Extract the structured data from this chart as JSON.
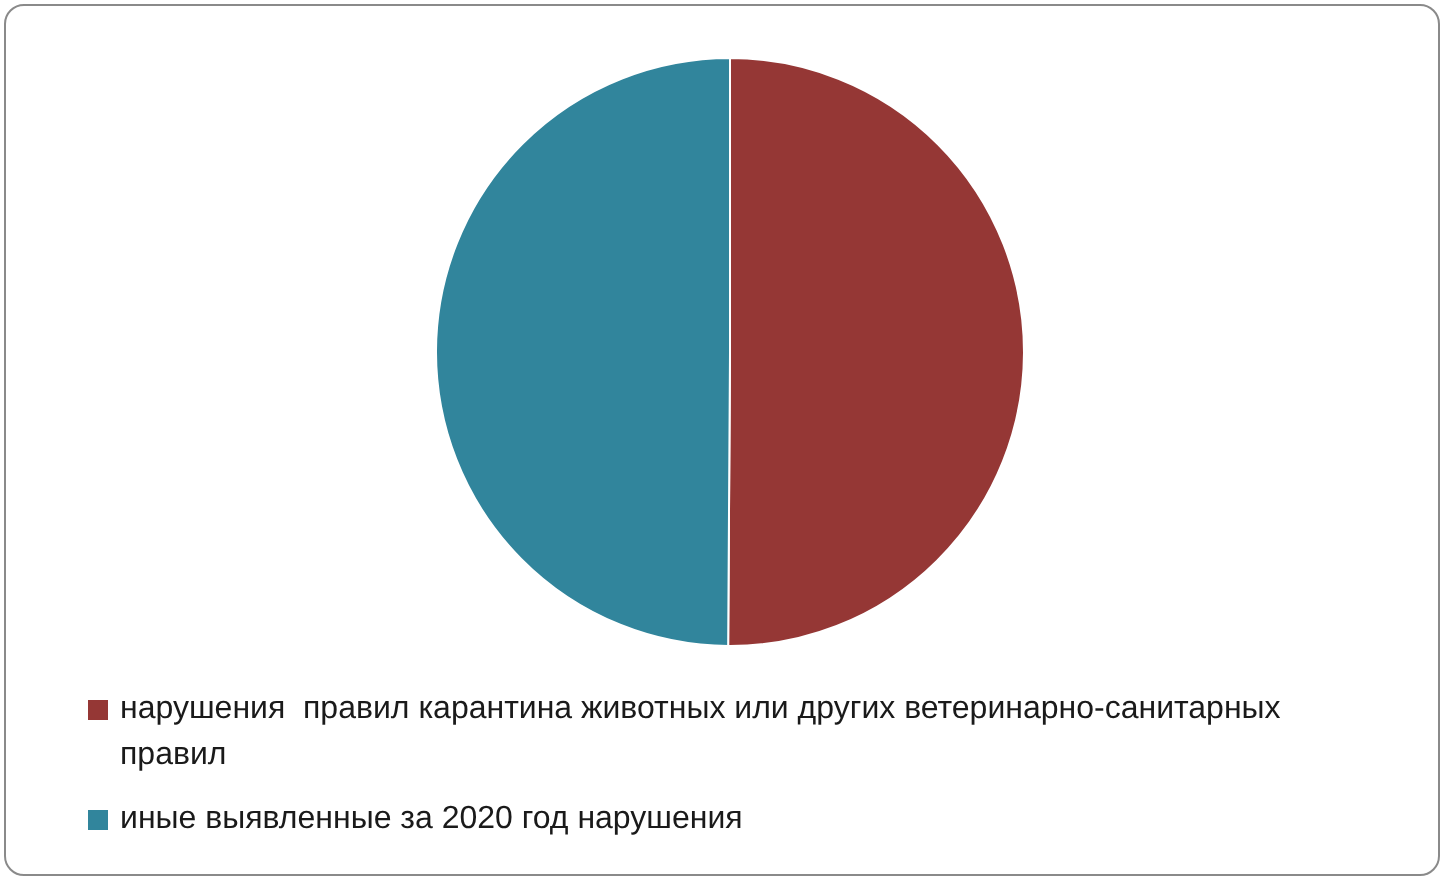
{
  "chart_data": {
    "type": "pie",
    "categories": [
      "нарушения  правил карантина животных или других ветеринарно-санитарных правил",
      "иные выявленные за 2020 год нарушения"
    ],
    "values": [
      50.1,
      49.9
    ],
    "colors": [
      "#953735",
      "#31859c"
    ],
    "legend": "bottom"
  }
}
